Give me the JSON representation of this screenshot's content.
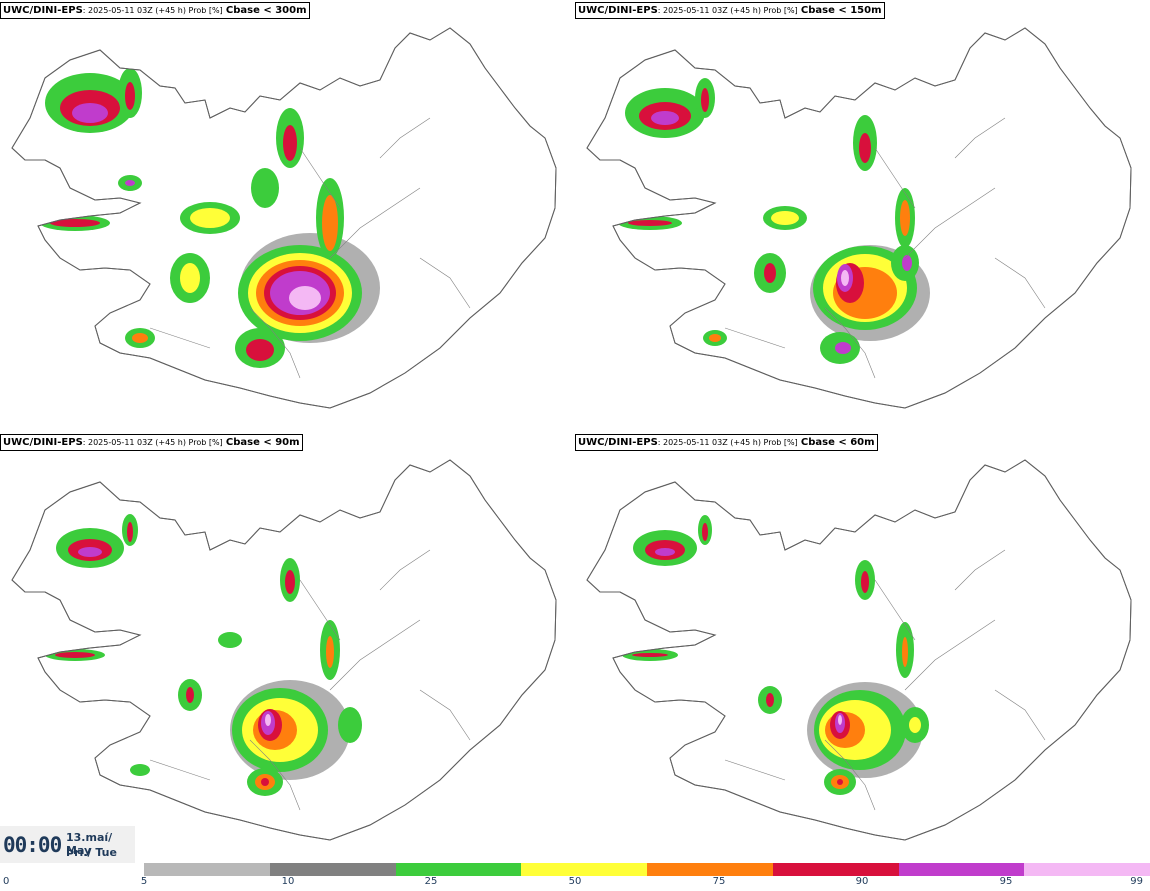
{
  "panels": [
    {
      "model": "UWC/DINI-EPS",
      "meta": ": 2025-05-11 03Z (+45 h) Prob [%]",
      "threshold": "Cbase < 300m"
    },
    {
      "model": "UWC/DINI-EPS",
      "meta": ": 2025-05-11 03Z (+45 h) Prob [%]",
      "threshold": "Cbase < 150m"
    },
    {
      "model": "UWC/DINI-EPS",
      "meta": ": 2025-05-11 03Z (+45 h) Prob [%]",
      "threshold": "Cbase < 90m"
    },
    {
      "model": "UWC/DINI-EPS",
      "meta": ": 2025-05-11 03Z (+45 h) Prob [%]",
      "threshold": "Cbase < 60m"
    }
  ],
  "valid_time": {
    "time": "00:00",
    "date_line1": "13.maí/ May",
    "date_line2": "Þri./ Tue"
  },
  "legend": {
    "ticks": [
      "0",
      "5",
      "10",
      "25",
      "50",
      "75",
      "90",
      "95",
      "99"
    ],
    "colors": [
      "#b8b8b8",
      "#808080",
      "#3ccc3c",
      "#ffff38",
      "#ff7f0e",
      "#d8103c",
      "#c03ccc",
      "#f4b8f4"
    ]
  },
  "styles": {
    "coast": "#606060",
    "low": "#b0b0b0",
    "mid": "#7f7f7f",
    "green": "#3ccc3c",
    "yellow": "#ffff38",
    "orange": "#ff7f0e",
    "red": "#d8103c",
    "purple": "#c03ccc",
    "pink": "#f4b8f4"
  }
}
